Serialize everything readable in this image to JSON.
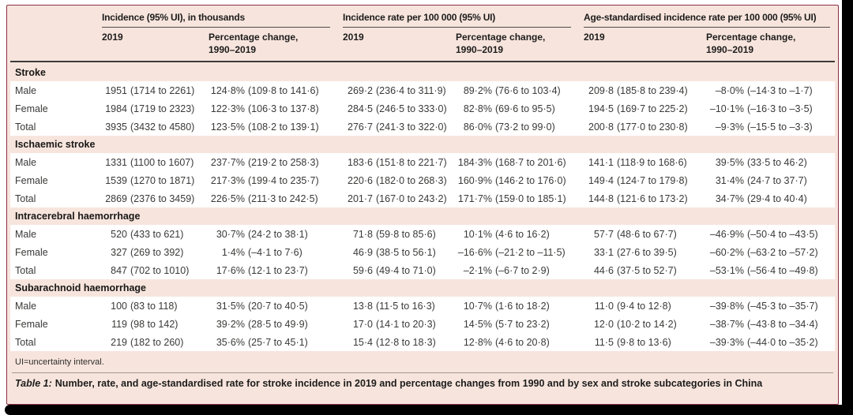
{
  "table": {
    "column_groups": [
      {
        "title": "Incidence (95% UI), in thousands",
        "year": "2019",
        "change": "Percentage change,\n1990–2019"
      },
      {
        "title": "Incidence rate per 100 000 (95% UI)",
        "year": "2019",
        "change": "Percentage change,\n1990–2019"
      },
      {
        "title": "Age-standardised incidence rate per 100 000 (95% UI)",
        "year": "2019",
        "change": "Percentage change,\n1990–2019"
      }
    ],
    "sections": [
      {
        "name": "Stroke",
        "rows": [
          {
            "label": "Male",
            "cells": [
              [
                "1951",
                "(1714 to 2261)"
              ],
              [
                "124·8%",
                "(109·8 to 141·6)"
              ],
              [
                "269·2",
                "(236·4 to 311·9)"
              ],
              [
                "89·2%",
                "(76·6 to 103·4)"
              ],
              [
                "209·8",
                "(185·8 to 239·4)"
              ],
              [
                "–8·0%",
                "(–14·3 to –1·7)"
              ]
            ]
          },
          {
            "label": "Female",
            "cells": [
              [
                "1984",
                "(1719 to 2323)"
              ],
              [
                "122·3%",
                "(106·3 to 137·8)"
              ],
              [
                "284·5",
                "(246·5 to 333·0)"
              ],
              [
                "82·8%",
                "(69·6 to 95·5)"
              ],
              [
                "194·5",
                "(169·7 to 225·2)"
              ],
              [
                "–10·1%",
                "(–16·3 to –3·5)"
              ]
            ]
          },
          {
            "label": "Total",
            "cells": [
              [
                "3935",
                "(3432 to 4580)"
              ],
              [
                "123·5%",
                "(108·2 to 139·1)"
              ],
              [
                "276·7",
                "(241·3 to 322·0)"
              ],
              [
                "86·0%",
                "(73·2 to 99·0)"
              ],
              [
                "200·8",
                "(177·0 to 230·8)"
              ],
              [
                "–9·3%",
                "(–15·5 to –3·3)"
              ]
            ]
          }
        ]
      },
      {
        "name": "Ischaemic stroke",
        "rows": [
          {
            "label": "Male",
            "cells": [
              [
                "1331",
                "(1100 to 1607)"
              ],
              [
                "237·7%",
                "(219·2 to 258·3)"
              ],
              [
                "183·6",
                "(151·8 to 221·7)"
              ],
              [
                "184·3%",
                "(168·7 to 201·6)"
              ],
              [
                "141·1",
                "(118·9 to 168·6)"
              ],
              [
                "39·5%",
                "(33·5 to 46·2)"
              ]
            ]
          },
          {
            "label": "Female",
            "cells": [
              [
                "1539",
                "(1270 to 1871)"
              ],
              [
                "217·3%",
                "(199·4 to 235·7)"
              ],
              [
                "220·6",
                "(182·0 to 268·3)"
              ],
              [
                "160·9%",
                "(146·2 to 176·0)"
              ],
              [
                "149·4",
                "(124·7 to 179·8)"
              ],
              [
                "31·4%",
                "(24·7 to 37·7)"
              ]
            ]
          },
          {
            "label": "Total",
            "cells": [
              [
                "2869",
                "(2376 to 3459)"
              ],
              [
                "226·5%",
                "(211·3 to 242·5)"
              ],
              [
                "201·7",
                "(167·0 to 243·2)"
              ],
              [
                "171·7%",
                "(159·0 to 185·1)"
              ],
              [
                "144·8",
                "(121·6 to 173·2)"
              ],
              [
                "34·7%",
                "(29·4 to 40·4)"
              ]
            ]
          }
        ]
      },
      {
        "name": "Intracerebral haemorrhage",
        "rows": [
          {
            "label": "Male",
            "cells": [
              [
                "520",
                "(433 to 621)"
              ],
              [
                "30·7%",
                "(24·2 to 38·1)"
              ],
              [
                "71·8",
                "(59·8 to 85·6)"
              ],
              [
                "10·1%",
                "(4·6 to 16·2)"
              ],
              [
                "57·7",
                "(48·6 to 67·7)"
              ],
              [
                "–46·9%",
                "(–50·4 to –43·5)"
              ]
            ]
          },
          {
            "label": "Female",
            "cells": [
              [
                "327",
                "(269 to 392)"
              ],
              [
                "1·4%",
                "(–4·1 to 7·6)"
              ],
              [
                "46·9",
                "(38·5 to 56·1)"
              ],
              [
                "–16·6%",
                "(–21·2 to –11·5)"
              ],
              [
                "33·1",
                "(27·6 to 39·5)"
              ],
              [
                "–60·2%",
                "(–63·2 to –57·2)"
              ]
            ]
          },
          {
            "label": "Total",
            "cells": [
              [
                "847",
                "(702 to 1010)"
              ],
              [
                "17·6%",
                "(12·1 to 23·7)"
              ],
              [
                "59·6",
                "(49·4 to 71·0)"
              ],
              [
                "–2·1%",
                "(–6·7 to 2·9)"
              ],
              [
                "44·6",
                "(37·5 to 52·7)"
              ],
              [
                "–53·1%",
                "(–56·4 to –49·8)"
              ]
            ]
          }
        ]
      },
      {
        "name": "Subarachnoid haemorrhage",
        "rows": [
          {
            "label": "Male",
            "cells": [
              [
                "100",
                "(83 to 118)"
              ],
              [
                "31·5%",
                "(20·7 to 40·5)"
              ],
              [
                "13·8",
                "(11·5 to 16·3)"
              ],
              [
                "10·7%",
                "(1·6 to 18·2)"
              ],
              [
                "11·0",
                "(9·4 to 12·8)"
              ],
              [
                "–39·8%",
                "(–45·3 to –35·7)"
              ]
            ]
          },
          {
            "label": "Female",
            "cells": [
              [
                "119",
                "(98 to 142)"
              ],
              [
                "39·2%",
                "(28·5 to 49·9)"
              ],
              [
                "17·0",
                "(14·1 to 20·3)"
              ],
              [
                "14·5%",
                "(5·7 to 23·2)"
              ],
              [
                "12·0",
                "(10·2 to 14·2)"
              ],
              [
                "–38·7%",
                "(–43·8 to –34·4)"
              ]
            ]
          },
          {
            "label": "Total",
            "cells": [
              [
                "219",
                "(182 to 260)"
              ],
              [
                "35·6%",
                "(25·7 to 45·1)"
              ],
              [
                "15·4",
                "(12·8 to 18·3)"
              ],
              [
                "12·8%",
                "(4·6 to 20·8)"
              ],
              [
                "11·5",
                "(9·8 to 13·6)"
              ],
              [
                "–39·3%",
                "(–44·0 to –35·2)"
              ]
            ]
          }
        ]
      }
    ],
    "footnote": "UI=uncertainty interval.",
    "caption_label": "Table 1:",
    "caption_text": "Number, rate, and age-standardised rate for stroke incidence in 2019 and percentage changes from 1990 and by sex and stroke subcategories in China"
  },
  "colors": {
    "table_background": "#f7e5dd",
    "frame_border": "#8a3045",
    "row_background": "#ffffff",
    "screen_edge": "#000000"
  }
}
